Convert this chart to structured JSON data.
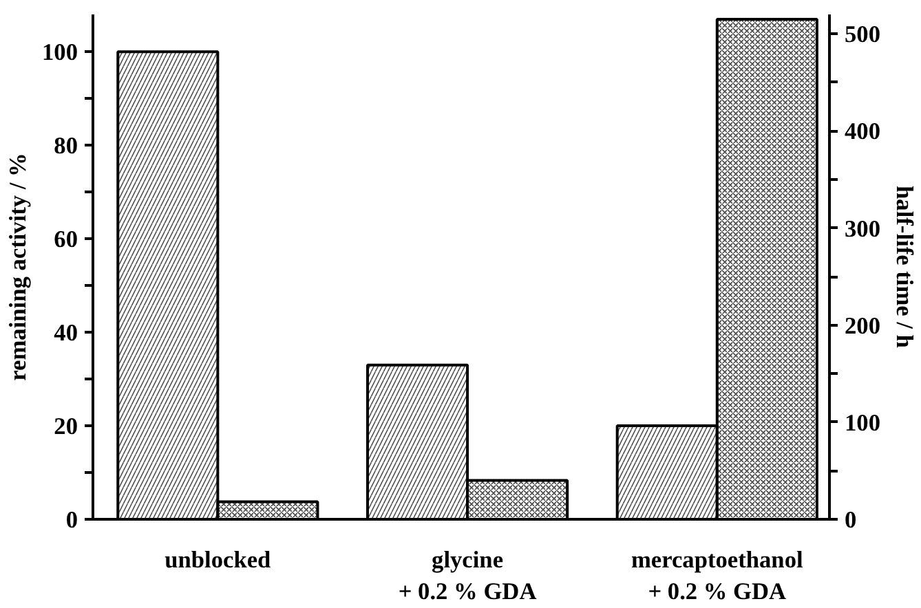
{
  "chart_data": {
    "type": "bar",
    "ylabel": "remaining activity / %",
    "y2label": "half-life time / h",
    "categories": [
      "unblocked",
      "glycine\n+ 0.2 % GDA",
      "mercaptoethanol\n+ 0.2 % GDA"
    ],
    "series": [
      {
        "color": "#000000",
        "values": [
          100,
          33,
          20
        ]
      },
      {
        "color": "#000000",
        "values": [
          18,
          40,
          515
        ],
        "axis": "y2"
      }
    ],
    "ylim": [
      0,
      108
    ],
    "yticks": [
      0,
      {
        "value": 10,
        "label": null
      },
      20,
      {
        "value": 30,
        "label": null
      },
      40,
      {
        "value": 50,
        "label": null
      },
      60,
      {
        "value": 70,
        "label": null
      },
      80,
      {
        "value": 90,
        "label": null
      },
      100
    ],
    "y2lim": [
      0,
      520
    ],
    "y2ticks": [
      0,
      {
        "value": 50,
        "label": null
      },
      100,
      {
        "value": 150,
        "label": null
      },
      200,
      {
        "value": 250,
        "label": null
      },
      300,
      {
        "value": 350,
        "label": null
      },
      400,
      {
        "value": 450,
        "label": null
      },
      500
    ],
    "data_labels": false
  }
}
